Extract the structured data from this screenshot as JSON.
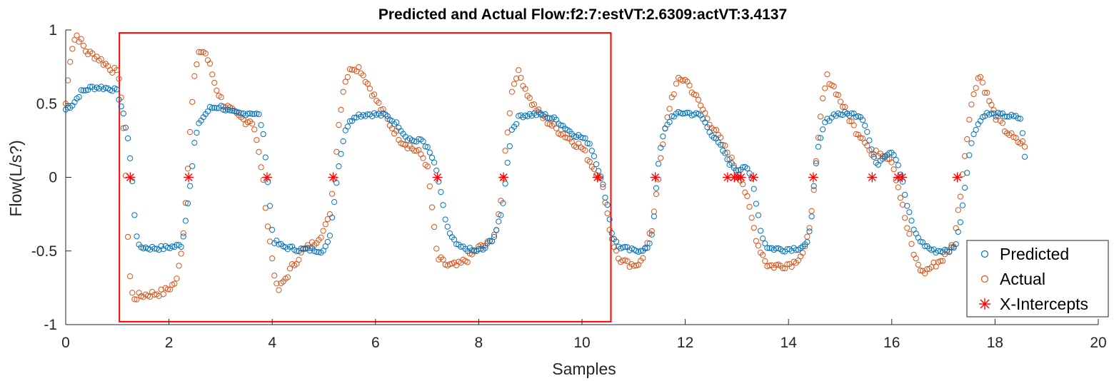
{
  "chart_data": {
    "type": "scatter",
    "title": "Predicted and Actual Flow:f2:7:estVT:2.6309:actVT:3.4137",
    "xlabel": "Samples",
    "ylabel": "Flow(L/s?)",
    "xlim": [
      0,
      20
    ],
    "ylim": [
      -1,
      1
    ],
    "x_ticks": [
      "0",
      "2",
      "4",
      "6",
      "8",
      "10",
      "12",
      "14",
      "16",
      "18",
      "20"
    ],
    "y_ticks": [
      "1",
      "0.5",
      "0",
      "-0.5",
      "-1"
    ],
    "grid": false,
    "legend_position": "bottom-right",
    "colors": {
      "predicted": "#0072BD",
      "actual": "#D95319",
      "intercepts": "#FF0000",
      "highlight": "#FF0000"
    },
    "highlight_rect": {
      "x": [
        1.04,
        10.56
      ],
      "y": [
        -0.98,
        0.98
      ]
    },
    "series": [
      {
        "name": "Predicted",
        "marker": "circle",
        "keypoints": [
          [
            0,
            0.46
          ],
          [
            0.15,
            0.5
          ],
          [
            0.3,
            0.58
          ],
          [
            0.5,
            0.61
          ],
          [
            0.7,
            0.61
          ],
          [
            0.9,
            0.6
          ],
          [
            1.0,
            0.58
          ],
          [
            1.1,
            0.45
          ],
          [
            1.2,
            0.28
          ],
          [
            1.28,
            0.02
          ],
          [
            1.33,
            -0.24
          ],
          [
            1.4,
            -0.47
          ],
          [
            1.6,
            -0.48
          ],
          [
            1.9,
            -0.48
          ],
          [
            2.1,
            -0.47
          ],
          [
            2.25,
            -0.46
          ],
          [
            2.32,
            -0.3
          ],
          [
            2.38,
            -0.12
          ],
          [
            2.44,
            0.04
          ],
          [
            2.5,
            0.25
          ],
          [
            2.6,
            0.38
          ],
          [
            2.8,
            0.47
          ],
          [
            3.0,
            0.48
          ],
          [
            3.2,
            0.44
          ],
          [
            3.4,
            0.43
          ],
          [
            3.6,
            0.44
          ],
          [
            3.75,
            0.42
          ],
          [
            3.82,
            0.3
          ],
          [
            3.88,
            0.12
          ],
          [
            3.92,
            -0.06
          ],
          [
            3.97,
            -0.25
          ],
          [
            4.02,
            -0.43
          ],
          [
            4.2,
            -0.47
          ],
          [
            4.5,
            -0.49
          ],
          [
            4.8,
            -0.49
          ],
          [
            5.0,
            -0.5
          ],
          [
            5.1,
            -0.43
          ],
          [
            5.18,
            -0.22
          ],
          [
            5.25,
            -0.02
          ],
          [
            5.32,
            0.15
          ],
          [
            5.42,
            0.33
          ],
          [
            5.6,
            0.42
          ],
          [
            5.9,
            0.43
          ],
          [
            6.2,
            0.42
          ],
          [
            6.45,
            0.35
          ],
          [
            6.6,
            0.27
          ],
          [
            6.8,
            0.24
          ],
          [
            6.9,
            0.26
          ],
          [
            7.0,
            0.2
          ],
          [
            7.1,
            0.13
          ],
          [
            7.2,
            0.02
          ],
          [
            7.28,
            -0.14
          ],
          [
            7.35,
            -0.28
          ],
          [
            7.45,
            -0.4
          ],
          [
            7.6,
            -0.47
          ],
          [
            7.9,
            -0.5
          ],
          [
            8.1,
            -0.49
          ],
          [
            8.3,
            -0.4
          ],
          [
            8.42,
            -0.28
          ],
          [
            8.5,
            -0.1
          ],
          [
            8.56,
            0.12
          ],
          [
            8.64,
            0.32
          ],
          [
            8.8,
            0.42
          ],
          [
            9.2,
            0.43
          ],
          [
            9.5,
            0.39
          ],
          [
            9.8,
            0.3
          ],
          [
            10.0,
            0.27
          ],
          [
            10.15,
            0.23
          ],
          [
            10.3,
            0.08
          ],
          [
            10.4,
            -0.05
          ],
          [
            10.5,
            -0.2
          ],
          [
            10.58,
            -0.38
          ],
          [
            10.7,
            -0.47
          ],
          [
            11.0,
            -0.5
          ],
          [
            11.3,
            -0.48
          ],
          [
            11.38,
            -0.33
          ],
          [
            11.43,
            -0.1
          ],
          [
            11.48,
            0.1
          ],
          [
            11.58,
            0.3
          ],
          [
            11.75,
            0.42
          ],
          [
            12.0,
            0.44
          ],
          [
            12.3,
            0.42
          ],
          [
            12.5,
            0.3
          ],
          [
            12.7,
            0.2
          ],
          [
            12.85,
            0.1
          ],
          [
            13.0,
            0.05
          ],
          [
            13.15,
            0.08
          ],
          [
            13.3,
            -0.02
          ],
          [
            13.4,
            -0.22
          ],
          [
            13.48,
            -0.4
          ],
          [
            13.6,
            -0.48
          ],
          [
            13.9,
            -0.49
          ],
          [
            14.2,
            -0.48
          ],
          [
            14.38,
            -0.45
          ],
          [
            14.45,
            -0.25
          ],
          [
            14.5,
            0.0
          ],
          [
            14.58,
            0.2
          ],
          [
            14.7,
            0.37
          ],
          [
            14.9,
            0.43
          ],
          [
            15.2,
            0.43
          ],
          [
            15.4,
            0.42
          ],
          [
            15.5,
            0.35
          ],
          [
            15.6,
            0.2
          ],
          [
            15.7,
            0.08
          ],
          [
            15.85,
            0.15
          ],
          [
            16.0,
            0.18
          ],
          [
            16.1,
            0.12
          ],
          [
            16.2,
            -0.02
          ],
          [
            16.3,
            -0.2
          ],
          [
            16.45,
            -0.38
          ],
          [
            16.6,
            -0.45
          ],
          [
            16.8,
            -0.5
          ],
          [
            17.1,
            -0.5
          ],
          [
            17.25,
            -0.45
          ],
          [
            17.35,
            -0.25
          ],
          [
            17.42,
            -0.05
          ],
          [
            17.5,
            0.15
          ],
          [
            17.6,
            0.32
          ],
          [
            17.8,
            0.43
          ],
          [
            18.2,
            0.42
          ],
          [
            18.5,
            0.4
          ],
          [
            18.6,
            0.07
          ]
        ]
      },
      {
        "name": "Actual",
        "marker": "circle",
        "keypoints": [
          [
            0,
            0.5
          ],
          [
            0.05,
            0.68
          ],
          [
            0.1,
            0.85
          ],
          [
            0.2,
            0.97
          ],
          [
            0.3,
            0.92
          ],
          [
            0.4,
            0.85
          ],
          [
            0.6,
            0.82
          ],
          [
            0.8,
            0.76
          ],
          [
            0.95,
            0.72
          ],
          [
            1.05,
            0.68
          ],
          [
            1.12,
            0.3
          ],
          [
            1.18,
            -0.1
          ],
          [
            1.22,
            -0.6
          ],
          [
            1.3,
            -0.82
          ],
          [
            1.5,
            -0.8
          ],
          [
            1.7,
            -0.79
          ],
          [
            1.9,
            -0.78
          ],
          [
            2.05,
            -0.74
          ],
          [
            2.15,
            -0.7
          ],
          [
            2.22,
            -0.55
          ],
          [
            2.3,
            -0.3
          ],
          [
            2.36,
            0.05
          ],
          [
            2.42,
            0.4
          ],
          [
            2.5,
            0.7
          ],
          [
            2.6,
            0.86
          ],
          [
            2.7,
            0.85
          ],
          [
            2.8,
            0.75
          ],
          [
            2.9,
            0.62
          ],
          [
            3.05,
            0.5
          ],
          [
            3.3,
            0.42
          ],
          [
            3.5,
            0.38
          ],
          [
            3.6,
            0.39
          ],
          [
            3.65,
            0.34
          ],
          [
            3.72,
            0.2
          ],
          [
            3.8,
            0.05
          ],
          [
            3.86,
            -0.15
          ],
          [
            3.92,
            -0.35
          ],
          [
            4.0,
            -0.55
          ],
          [
            4.1,
            -0.78
          ],
          [
            4.2,
            -0.72
          ],
          [
            4.4,
            -0.6
          ],
          [
            4.6,
            -0.5
          ],
          [
            4.8,
            -0.45
          ],
          [
            5.0,
            -0.36
          ],
          [
            5.1,
            -0.28
          ],
          [
            5.2,
            0.0
          ],
          [
            5.3,
            0.4
          ],
          [
            5.4,
            0.65
          ],
          [
            5.55,
            0.75
          ],
          [
            5.7,
            0.74
          ],
          [
            5.9,
            0.6
          ],
          [
            6.1,
            0.47
          ],
          [
            6.3,
            0.35
          ],
          [
            6.5,
            0.25
          ],
          [
            6.7,
            0.2
          ],
          [
            6.9,
            0.15
          ],
          [
            7.0,
            0.08
          ],
          [
            7.08,
            -0.15
          ],
          [
            7.15,
            -0.4
          ],
          [
            7.2,
            -0.55
          ],
          [
            7.4,
            -0.6
          ],
          [
            7.6,
            -0.6
          ],
          [
            7.8,
            -0.55
          ],
          [
            8.0,
            -0.48
          ],
          [
            8.2,
            -0.45
          ],
          [
            8.35,
            -0.35
          ],
          [
            8.42,
            -0.2
          ],
          [
            8.48,
            0.05
          ],
          [
            8.55,
            0.3
          ],
          [
            8.65,
            0.6
          ],
          [
            8.75,
            0.72
          ],
          [
            8.85,
            0.65
          ],
          [
            9.0,
            0.52
          ],
          [
            9.2,
            0.42
          ],
          [
            9.5,
            0.33
          ],
          [
            9.8,
            0.25
          ],
          [
            10.0,
            0.2
          ],
          [
            10.2,
            0.08
          ],
          [
            10.35,
            0.0
          ],
          [
            10.45,
            -0.15
          ],
          [
            10.55,
            -0.38
          ],
          [
            10.7,
            -0.55
          ],
          [
            11.0,
            -0.62
          ],
          [
            11.2,
            -0.52
          ],
          [
            11.35,
            -0.36
          ],
          [
            11.42,
            -0.15
          ],
          [
            11.5,
            0.05
          ],
          [
            11.6,
            0.3
          ],
          [
            11.72,
            0.52
          ],
          [
            11.85,
            0.65
          ],
          [
            12.0,
            0.67
          ],
          [
            12.2,
            0.55
          ],
          [
            12.4,
            0.42
          ],
          [
            12.6,
            0.3
          ],
          [
            12.8,
            0.18
          ],
          [
            13.0,
            0.05
          ],
          [
            13.1,
            -0.02
          ],
          [
            13.2,
            -0.15
          ],
          [
            13.3,
            -0.3
          ],
          [
            13.4,
            -0.45
          ],
          [
            13.6,
            -0.6
          ],
          [
            13.85,
            -0.6
          ],
          [
            14.1,
            -0.58
          ],
          [
            14.3,
            -0.5
          ],
          [
            14.4,
            -0.38
          ],
          [
            14.48,
            -0.1
          ],
          [
            14.55,
            0.15
          ],
          [
            14.65,
            0.5
          ],
          [
            14.75,
            0.68
          ],
          [
            14.9,
            0.6
          ],
          [
            15.1,
            0.45
          ],
          [
            15.3,
            0.32
          ],
          [
            15.5,
            0.25
          ],
          [
            15.6,
            0.15
          ],
          [
            15.8,
            0.17
          ],
          [
            16.0,
            0.12
          ],
          [
            16.15,
            -0.1
          ],
          [
            16.3,
            -0.35
          ],
          [
            16.45,
            -0.55
          ],
          [
            16.6,
            -0.65
          ],
          [
            16.8,
            -0.6
          ],
          [
            17.0,
            -0.55
          ],
          [
            17.2,
            -0.45
          ],
          [
            17.3,
            -0.2
          ],
          [
            17.38,
            0.05
          ],
          [
            17.48,
            0.35
          ],
          [
            17.6,
            0.6
          ],
          [
            17.7,
            0.7
          ],
          [
            17.8,
            0.6
          ],
          [
            18.0,
            0.42
          ],
          [
            18.2,
            0.32
          ],
          [
            18.4,
            0.25
          ],
          [
            18.6,
            0.22
          ]
        ]
      },
      {
        "name": "X-Intercepts",
        "marker": "asterisk",
        "x": [
          1.25,
          2.38,
          3.9,
          5.18,
          7.2,
          8.48,
          10.3,
          11.42,
          12.82,
          12.95,
          13.02,
          13.08,
          13.32,
          14.48,
          15.62,
          16.12,
          16.2,
          17.27
        ],
        "y": [
          0,
          0,
          0,
          0,
          0,
          0,
          0,
          0,
          0,
          0,
          0,
          0,
          0,
          0,
          0,
          0,
          0,
          0
        ]
      }
    ]
  }
}
